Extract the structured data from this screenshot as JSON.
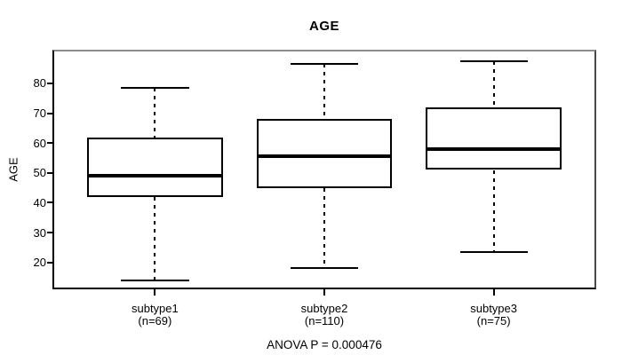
{
  "chart_data": {
    "type": "boxplot",
    "title": "AGE",
    "ylabel": "AGE",
    "footnote": "ANOVA P = 0.000476",
    "grid": false,
    "yticks": [
      20,
      30,
      40,
      50,
      60,
      70,
      80
    ],
    "ylim": [
      11.3,
      91.0
    ],
    "xlim": [
      0.4,
      3.6
    ],
    "box_width": 0.8,
    "cap_width": 0.4,
    "colors": {
      "stroke": "#000000",
      "frame": "#8c8c8c",
      "background": "#ffffff"
    },
    "groups": [
      {
        "label": "subtype1",
        "count_label": "(n=69)",
        "n": 69,
        "position": 1,
        "whisker_low": 14,
        "q1": 42,
        "median": 49,
        "q3": 62,
        "whisker_high": 78.5
      },
      {
        "label": "subtype2",
        "count_label": "(n=110)",
        "n": 110,
        "position": 2,
        "whisker_low": 18,
        "q1": 45,
        "median": 55.5,
        "q3": 68,
        "whisker_high": 86.5
      },
      {
        "label": "subtype3",
        "count_label": "(n=75)",
        "n": 75,
        "position": 3,
        "whisker_low": 23.5,
        "q1": 51,
        "median": 58,
        "q3": 72,
        "whisker_high": 87.5
      }
    ]
  }
}
